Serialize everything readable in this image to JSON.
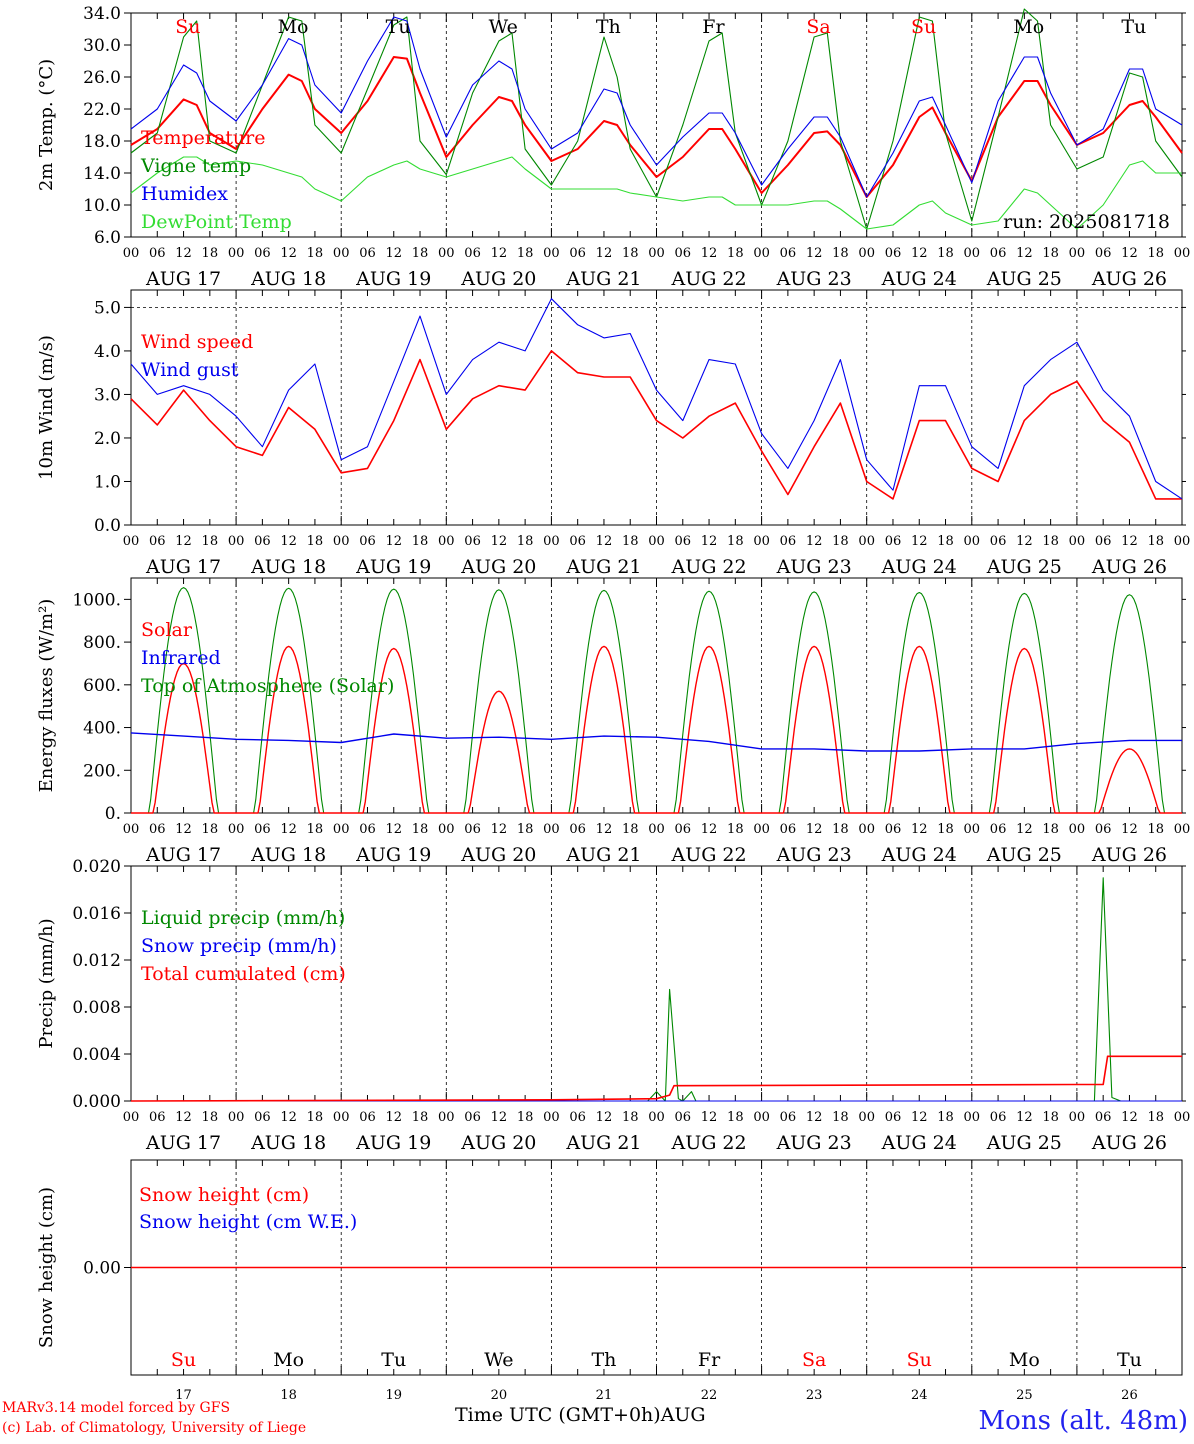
{
  "colors": {
    "red": "#ff0000",
    "dark_green": "#008800",
    "blue": "#0000ee",
    "light_green": "#33dd33"
  },
  "footer": {
    "credit_line1": "MARv3.14 model forced by GFS",
    "credit_line2": "(c) Lab. of Climatology, University of Liege",
    "x_title": "Time UTC (GMT+0h)",
    "x_title_suffix": "AUG",
    "station": "Mons (alt. 48m)"
  },
  "chart_data": [
    {
      "type": "line",
      "ylabel": "2m Temp. (°C)",
      "ylim": [
        6.0,
        34.0
      ],
      "yticks": [
        "6.0",
        "10.0",
        "14.0",
        "18.0",
        "22.0",
        "26.0",
        "30.0",
        "34.0"
      ],
      "day_names": [
        "Su",
        "Mo",
        "Tu",
        "We",
        "Th",
        "Fr",
        "Sa",
        "Su",
        "Mo",
        "Tu"
      ],
      "day_name_colors": [
        "red",
        "black",
        "black",
        "black",
        "black",
        "black",
        "red",
        "red",
        "black",
        "black"
      ],
      "date_labels": [
        "AUG 17",
        "AUG 18",
        "AUG 19",
        "AUG 20",
        "AUG 21",
        "AUG 22",
        "AUG 23",
        "AUG 24",
        "AUG 25",
        "AUG 26"
      ],
      "hour_labels": [
        "00",
        "06",
        "12",
        "18"
      ],
      "annotation": "run: 2025081718",
      "grid": "vertical dashed at 00 UTC",
      "legend": "top-left",
      "x_hours": [
        0,
        6,
        12,
        15,
        18,
        24,
        30,
        36,
        39,
        42,
        48,
        54,
        60,
        63,
        66,
        72,
        78,
        84,
        87,
        90,
        96,
        102,
        108,
        111,
        114,
        120,
        126,
        132,
        135,
        138,
        144,
        150,
        156,
        159,
        162,
        168,
        174,
        180,
        183,
        186,
        192,
        198,
        204,
        207,
        210,
        216,
        222,
        228,
        231,
        234,
        240
      ],
      "series": [
        {
          "name": "Temperature",
          "color": "red",
          "values": [
            17.5,
            19.5,
            23.2,
            22.5,
            19.0,
            17.0,
            22.0,
            26.3,
            25.5,
            22.0,
            19.0,
            23.0,
            28.5,
            28.3,
            24.0,
            16.0,
            20.0,
            23.5,
            23.0,
            20.0,
            15.5,
            17.0,
            20.5,
            20.0,
            17.5,
            13.5,
            16.0,
            19.5,
            19.5,
            17.0,
            11.5,
            15.0,
            19.0,
            19.2,
            17.5,
            11.0,
            15.0,
            21.0,
            22.2,
            19.0,
            13.0,
            21.0,
            25.5,
            25.5,
            22.5,
            17.5,
            19.0,
            22.5,
            23.0,
            21.0,
            16.5
          ]
        },
        {
          "name": "Vigne temp",
          "color": "dark_green",
          "values": [
            16.5,
            19.0,
            31.0,
            33.0,
            18.0,
            16.5,
            25.0,
            33.5,
            33.0,
            20.0,
            16.5,
            24.5,
            32.5,
            33.5,
            18.0,
            13.8,
            24.0,
            30.5,
            31.5,
            17.0,
            12.5,
            18.0,
            31.0,
            26.0,
            17.0,
            11.0,
            20.0,
            30.5,
            31.5,
            19.0,
            10.0,
            18.0,
            31.0,
            31.5,
            18.0,
            7.0,
            18.0,
            33.5,
            33.0,
            19.0,
            8.0,
            21.0,
            34.5,
            33.0,
            20.0,
            14.5,
            16.0,
            26.5,
            26.0,
            18.0,
            13.5
          ]
        },
        {
          "name": "Humidex",
          "color": "blue",
          "values": [
            19.5,
            22.0,
            27.5,
            26.5,
            23.0,
            20.5,
            25.0,
            30.8,
            30.0,
            25.0,
            21.5,
            28.0,
            33.5,
            33.0,
            27.0,
            18.5,
            25.0,
            28.0,
            27.0,
            22.0,
            17.0,
            19.0,
            24.5,
            24.0,
            20.0,
            15.0,
            18.5,
            21.5,
            21.5,
            19.0,
            12.5,
            17.0,
            21.0,
            21.0,
            18.5,
            11.0,
            16.5,
            23.0,
            23.5,
            20.0,
            12.8,
            23.0,
            28.5,
            28.5,
            24.0,
            17.5,
            19.5,
            27.0,
            27.0,
            22.0,
            20.0
          ]
        },
        {
          "name": "DewPoint Temp",
          "color": "light_green",
          "values": [
            11.5,
            14.0,
            16.0,
            16.0,
            15.0,
            15.5,
            15.0,
            14.0,
            13.5,
            12.0,
            10.5,
            13.5,
            15.0,
            15.5,
            14.5,
            13.5,
            14.5,
            15.5,
            16.0,
            14.5,
            12.0,
            12.0,
            12.0,
            12.0,
            11.5,
            11.0,
            10.5,
            11.0,
            11.0,
            10.0,
            10.0,
            10.0,
            10.5,
            10.5,
            9.5,
            7.0,
            7.5,
            10.0,
            10.5,
            9.0,
            7.5,
            8.0,
            12.0,
            11.5,
            10.0,
            7.0,
            10.0,
            15.0,
            15.5,
            14.0,
            14.0
          ]
        }
      ]
    },
    {
      "type": "line",
      "ylabel": "10m Wind (m/s)",
      "ylim": [
        0,
        5.4
      ],
      "yticks": [
        "0.0",
        "1.0",
        "2.0",
        "3.0",
        "4.0",
        "5.0"
      ],
      "reference_line": 5.0,
      "date_labels": [
        "AUG 17",
        "AUG 18",
        "AUG 19",
        "AUG 20",
        "AUG 21",
        "AUG 22",
        "AUG 23",
        "AUG 24",
        "AUG 25",
        "AUG 26"
      ],
      "hour_labels": [
        "00",
        "06",
        "12",
        "18"
      ],
      "legend": "top-left",
      "x_hours": [
        0,
        6,
        12,
        18,
        24,
        30,
        36,
        42,
        48,
        54,
        60,
        66,
        72,
        78,
        84,
        90,
        96,
        102,
        108,
        114,
        120,
        126,
        132,
        138,
        144,
        150,
        156,
        162,
        168,
        174,
        180,
        186,
        192,
        198,
        204,
        210,
        216,
        222,
        228,
        234,
        240
      ],
      "series": [
        {
          "name": "Wind speed",
          "color": "red",
          "values": [
            2.9,
            2.3,
            3.1,
            2.4,
            1.8,
            1.6,
            2.7,
            2.2,
            1.2,
            1.3,
            2.4,
            3.8,
            2.2,
            2.9,
            3.2,
            3.1,
            4.0,
            3.5,
            3.4,
            3.4,
            2.4,
            2.0,
            2.5,
            2.8,
            1.7,
            0.7,
            1.8,
            2.8,
            1.0,
            0.6,
            2.4,
            2.4,
            1.3,
            1.0,
            2.4,
            3.0,
            3.3,
            2.4,
            1.9,
            0.6,
            0.6
          ]
        },
        {
          "name": "Wind gust",
          "color": "blue",
          "values": [
            3.7,
            3.0,
            3.2,
            3.0,
            2.5,
            1.8,
            3.1,
            3.7,
            1.5,
            1.8,
            3.3,
            4.8,
            3.0,
            3.8,
            4.2,
            4.0,
            5.2,
            4.6,
            4.3,
            4.4,
            3.1,
            2.4,
            3.8,
            3.7,
            2.1,
            1.3,
            2.4,
            3.8,
            1.5,
            0.8,
            3.2,
            3.2,
            1.8,
            1.3,
            3.2,
            3.8,
            4.2,
            3.1,
            2.5,
            1.0,
            0.6
          ]
        }
      ]
    },
    {
      "type": "line",
      "ylabel": "Energy fluxes (W/m²)",
      "ylim": [
        0,
        1100
      ],
      "yticks": [
        "0.",
        "200.",
        "400.",
        "600.",
        "800.",
        "1000."
      ],
      "date_labels": [
        "AUG 17",
        "AUG 18",
        "AUG 19",
        "AUG 20",
        "AUG 21",
        "AUG 22",
        "AUG 23",
        "AUG 24",
        "AUG 25",
        "AUG 26"
      ],
      "hour_labels": [
        "00",
        "06",
        "12",
        "18"
      ],
      "legend": "top-left",
      "solar_peaks": [
        700,
        780,
        770,
        570,
        780,
        780,
        780,
        780,
        770,
        300
      ],
      "toa_peaks": [
        1055,
        1052,
        1048,
        1045,
        1042,
        1038,
        1035,
        1032,
        1028,
        1022
      ],
      "series": [
        {
          "name": "Solar",
          "color": "red",
          "values": [
            700,
            780,
            770,
            570,
            780,
            780,
            780,
            780,
            770,
            300
          ]
        },
        {
          "name": "Infrared",
          "color": "blue",
          "x_hours": [
            0,
            12,
            24,
            36,
            48,
            60,
            72,
            84,
            96,
            108,
            120,
            132,
            144,
            156,
            168,
            180,
            192,
            204,
            216,
            228,
            240
          ],
          "values": [
            375,
            360,
            345,
            340,
            330,
            370,
            350,
            355,
            345,
            360,
            355,
            335,
            300,
            300,
            290,
            290,
            300,
            300,
            325,
            340,
            340
          ]
        },
        {
          "name": "Top of Atmosphere (Solar)",
          "color": "dark_green",
          "values": [
            1055,
            1052,
            1048,
            1045,
            1042,
            1038,
            1035,
            1032,
            1028,
            1022
          ]
        }
      ]
    },
    {
      "type": "line",
      "ylabel": "Precip (mm/h)",
      "ylim": [
        0,
        0.02
      ],
      "yticks": [
        "0.000",
        "0.004",
        "0.008",
        "0.012",
        "0.016",
        "0.020"
      ],
      "date_labels": [
        "AUG 17",
        "AUG 18",
        "AUG 19",
        "AUG 20",
        "AUG 21",
        "AUG 22",
        "AUG 23",
        "AUG 24",
        "AUG 25",
        "AUG 26"
      ],
      "hour_labels": [
        "00",
        "06",
        "12",
        "18"
      ],
      "legend": "top-left",
      "series": [
        {
          "name": "Liquid precip (mm/h)",
          "color": "dark_green",
          "x_hours": [
            0,
            118,
            120,
            122,
            123,
            125,
            126,
            128,
            129,
            130,
            131,
            216,
            220,
            222,
            224,
            226,
            240
          ],
          "values": [
            0,
            0,
            0.0008,
            0,
            0.0095,
            0.0002,
            0,
            0.0008,
            0,
            0,
            0,
            0,
            0,
            0.019,
            0.0003,
            0,
            0
          ]
        },
        {
          "name": "Snow precip (mm/h)",
          "color": "blue",
          "x_hours": [
            0,
            240
          ],
          "values": [
            0,
            0
          ]
        },
        {
          "name": "Total cumulated (cm)",
          "color": "red",
          "x_hours": [
            0,
            96,
            120,
            123,
            124,
            216,
            222,
            223,
            240
          ],
          "values": [
            0,
            0.0001,
            0.0002,
            0.0005,
            0.0013,
            0.0014,
            0.0014,
            0.0038,
            0.0038
          ]
        }
      ]
    },
    {
      "type": "line",
      "ylabel": "Snow height (cm)",
      "yticks": [
        "0.00"
      ],
      "day_names": [
        "Su",
        "Mo",
        "Tu",
        "We",
        "Th",
        "Fr",
        "Sa",
        "Su",
        "Mo",
        "Tu"
      ],
      "day_name_colors": [
        "red",
        "black",
        "black",
        "black",
        "black",
        "black",
        "red",
        "red",
        "black",
        "black"
      ],
      "day_numbers": [
        "17",
        "18",
        "19",
        "20",
        "21",
        "22",
        "23",
        "24",
        "25",
        "26"
      ],
      "legend": "top-left",
      "series": [
        {
          "name": "Snow height (cm)",
          "color": "red",
          "values": [
            0,
            0
          ]
        },
        {
          "name": "Snow height (cm W.E.)",
          "color": "blue",
          "values": [
            0,
            0
          ]
        }
      ]
    }
  ]
}
